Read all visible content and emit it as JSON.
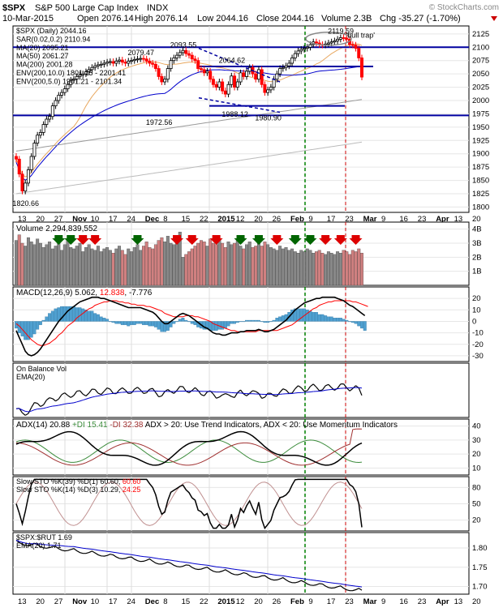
{
  "header": {
    "symbol": "$SPX",
    "name": "S&P 500 Large Cap Index",
    "exchange": "INDX",
    "date": "10-Mar-2015",
    "open": "Open 2076.14",
    "high": "High 2076.14",
    "low": "Low 2044.16",
    "close": "Close 2044.16",
    "volume": "Volume 2.3B",
    "change": "Chg -35.27 (-1.70%)",
    "arrow": "down-arrow-icon",
    "watermark": "© StockCharts.com"
  },
  "colors": {
    "up": "#000000",
    "down": "#ff0000",
    "ma20": "#e8a860",
    "ma50": "#0000cc",
    "ma200": "#000000",
    "blue_line": "#0000a0",
    "green_vline": "#008000",
    "red_vline": "#cc0000",
    "vol_up": "#888888",
    "vol_down": "#d08080",
    "macd_hist": "#4fa0d0",
    "adx": "#000000",
    "plus_di": "#3c8c3c",
    "minus_di": "#a03030"
  },
  "chart_data": [
    {
      "panel": "price",
      "type": "candlestick",
      "title": "$SPX (Daily) 2044.16",
      "legend": [
        {
          "text": "$SPX (Daily) 2044.16",
          "color": "#000000"
        },
        {
          "text": "SAR(0.02,0.2) 2110.94",
          "color": "#444444"
        },
        {
          "text": "MA(20) 2095.21",
          "color": "#e8a860"
        },
        {
          "text": "MA(50) 2061.27",
          "color": "#0000cc"
        },
        {
          "text": "MA(200) 2001.28",
          "color": "#000000"
        },
        {
          "text": "ENV(200,10.0) 1801.15 - 2201.41",
          "color": "#000000"
        },
        {
          "text": "ENV(200,5.0) 1901.21 - 2101.34",
          "color": "#666666"
        }
      ],
      "ylim": [
        1790,
        2140
      ],
      "yticks": [
        2125,
        2100,
        2075,
        2050,
        2025,
        2000,
        1975,
        1950,
        1925,
        1900,
        1875,
        1850,
        1825,
        1800
      ],
      "close": [
        1890,
        1862,
        1830,
        1845,
        1870,
        1895,
        1920,
        1935,
        1940,
        1955,
        1965,
        1970,
        1990,
        2000,
        2010,
        2015,
        2022,
        2030,
        2038,
        2040,
        2045,
        2048,
        2050,
        2054,
        2058,
        2062,
        2065,
        2067,
        2068,
        2070,
        2072,
        2073,
        2070,
        2074,
        2076,
        2072,
        2070,
        2074,
        2075,
        2077,
        2078,
        2079,
        2078,
        2074,
        2070,
        2068,
        2060,
        2045,
        2035,
        2040,
        2060,
        2075,
        2080,
        2085,
        2090,
        2094,
        2088,
        2085,
        2078,
        2075,
        2060,
        2058,
        2052,
        2055,
        2040,
        2030,
        2025,
        2035,
        2018,
        2012,
        2030,
        2046,
        2025,
        2035,
        2052,
        2045,
        2055,
        2062,
        2050,
        2040,
        2058,
        2030,
        2015,
        2020,
        2025,
        2040,
        2050,
        2060,
        2062,
        2065,
        2070,
        2080,
        2088,
        2093,
        2096,
        2098,
        2100,
        2105,
        2110,
        2108,
        2105,
        2104,
        2106,
        2108,
        2110,
        2112,
        2115,
        2118,
        2117,
        2115,
        2105,
        2104,
        2098,
        2080,
        2044
      ],
      "annotations": [
        {
          "text": "1820.66",
          "value": 1820.66,
          "bar": 2
        },
        {
          "text": "2079.47",
          "value": 2079.47,
          "bar": 40
        },
        {
          "text": "2093.55",
          "value": 2093.55,
          "bar": 54
        },
        {
          "text": "1972.56",
          "value": 1972.56,
          "bar": 46
        },
        {
          "text": "2064.62",
          "value": 2064.62,
          "bar": 70
        },
        {
          "text": "1988.12",
          "value": 1988.12,
          "bar": 71
        },
        {
          "text": "1980.90",
          "value": 1980.9,
          "bar": 82
        },
        {
          "text": "2119.59",
          "value": 2119.59,
          "bar": 106
        },
        {
          "text": "'bull trap'",
          "value": 2112,
          "bar": 112
        }
      ],
      "horizontal_lines": [
        2100,
        2064,
        1990,
        1972
      ],
      "x_labels": [
        "13",
        "20",
        "27",
        "Nov",
        "10",
        "17",
        "24",
        "Dec",
        "8",
        "15",
        "22",
        "2015",
        "12",
        "20",
        "26",
        "Feb",
        "9",
        "17",
        "23",
        "Mar",
        "9",
        "16",
        "23",
        "Apr",
        "13",
        "20"
      ]
    },
    {
      "panel": "volume",
      "type": "bar",
      "title": "Volume 2,294,839,552",
      "yticks_labels": [
        "4B",
        "3B",
        "2B",
        "1B"
      ],
      "ylim": [
        0,
        4.5
      ],
      "values": [
        3.2,
        3.6,
        3.0,
        2.8,
        3.4,
        3.1,
        2.9,
        3.3,
        3.0,
        2.7,
        2.9,
        3.1,
        2.6,
        2.8,
        3.0,
        2.5,
        2.9,
        3.2,
        2.7,
        2.6,
        2.8,
        3.0,
        2.4,
        2.7,
        2.9,
        2.6,
        2.5,
        2.8,
        2.4,
        2.6,
        2.7,
        2.5,
        2.3,
        2.6,
        2.8,
        2.5,
        2.2,
        2.6,
        2.4,
        2.7,
        2.9,
        2.5,
        2.8,
        3.1,
        2.7,
        2.6,
        2.9,
        3.2,
        3.4,
        3.1,
        3.5,
        3.0,
        2.9,
        3.2,
        3.8,
        2.0,
        2.2,
        2.4,
        2.6,
        2.8,
        3.0,
        3.2,
        3.1,
        2.8,
        3.3,
        3.0,
        2.9,
        3.2,
        3.0,
        2.7,
        3.1,
        2.9,
        3.0,
        3.2,
        2.8,
        2.6,
        2.9,
        3.1,
        2.7,
        2.8,
        3.0,
        2.8,
        3.1,
        2.9,
        2.7,
        2.6,
        2.5,
        2.8,
        2.6,
        2.7,
        2.5,
        2.6,
        2.4,
        2.3,
        2.5,
        2.4,
        2.6,
        2.5,
        2.3,
        2.4,
        2.5,
        2.3,
        2.2,
        2.4,
        2.3,
        2.2,
        2.4,
        2.3,
        2.5,
        2.4,
        2.2,
        2.5,
        2.4,
        2.6,
        2.3
      ]
    },
    {
      "panel": "macd",
      "type": "line",
      "title": "MACD(12,26,9) 5.062, 12.838, -7.776",
      "legend_parts": [
        {
          "text": "MACD(12,26,9) 5.062, ",
          "color": "#000000"
        },
        {
          "text": "12.838",
          "color": "#ff0000"
        },
        {
          "text": ", -7.776",
          "color": "#000000"
        }
      ],
      "ylim": [
        -35,
        30
      ],
      "yticks": [
        20,
        10,
        0,
        -10,
        -20,
        -30
      ],
      "macd": [
        -8,
        -14,
        -20,
        -26,
        -29,
        -30,
        -29,
        -27,
        -24,
        -20,
        -16,
        -12,
        -8,
        -4,
        0,
        3,
        6,
        9,
        11,
        13,
        15,
        17,
        18,
        19,
        20,
        21,
        21,
        21,
        20,
        20,
        19,
        18,
        17,
        16,
        15,
        14,
        13,
        12,
        12,
        12,
        12,
        12,
        11,
        10,
        9,
        8,
        6,
        3,
        0,
        -2,
        -2,
        0,
        2,
        4,
        6,
        7,
        6,
        5,
        3,
        1,
        -1,
        -3,
        -5,
        -6,
        -8,
        -10,
        -11,
        -11,
        -12,
        -12,
        -11,
        -10,
        -10,
        -10,
        -9,
        -9,
        -8,
        -8,
        -8,
        -8,
        -7,
        -8,
        -9,
        -9,
        -8,
        -7,
        -5,
        -3,
        -1,
        1,
        4,
        7,
        10,
        12,
        14,
        16,
        17,
        18,
        19,
        20,
        20,
        21,
        21,
        21,
        21,
        21,
        20,
        19,
        18,
        16,
        14,
        13,
        11,
        9,
        7,
        5
      ],
      "signal": [
        -2,
        -4,
        -7,
        -10,
        -13,
        -16,
        -18,
        -20,
        -21,
        -21,
        -20,
        -19,
        -17,
        -15,
        -12,
        -10,
        -7,
        -4,
        -2,
        0,
        3,
        5,
        7,
        9,
        11,
        12,
        14,
        15,
        16,
        17,
        17,
        18,
        18,
        18,
        17,
        17,
        16,
        16,
        15,
        15,
        14,
        14,
        14,
        13,
        13,
        12,
        11,
        10,
        9,
        7,
        6,
        5,
        4,
        4,
        4,
        4,
        5,
        5,
        5,
        4,
        4,
        3,
        2,
        1,
        0,
        -2,
        -3,
        -4,
        -5,
        -6,
        -7,
        -8,
        -8,
        -9,
        -9,
        -9,
        -9,
        -9,
        -9,
        -9,
        -8,
        -8,
        -8,
        -8,
        -8,
        -8,
        -8,
        -7,
        -6,
        -5,
        -4,
        -3,
        -1,
        1,
        3,
        5,
        7,
        9,
        11,
        12,
        14,
        15,
        16,
        17,
        17,
        18,
        18,
        18,
        18,
        18,
        18,
        17,
        17,
        16,
        15,
        14,
        13
      ],
      "hist": [
        -6,
        -10,
        -13,
        -16,
        -16,
        -14,
        -11,
        -7,
        -3,
        1,
        4,
        7,
        9,
        11,
        12,
        13,
        13,
        13,
        13,
        13,
        12,
        12,
        11,
        10,
        9,
        9,
        7,
        6,
        4,
        3,
        2,
        0,
        -1,
        -2,
        -2,
        -3,
        -3,
        -4,
        -3,
        -3,
        -2,
        -2,
        -3,
        -3,
        -4,
        -4,
        -5,
        -7,
        -9,
        -9,
        -8,
        -5,
        -2,
        0,
        2,
        3,
        1,
        0,
        -2,
        -3,
        -5,
        -6,
        -7,
        -7,
        -8,
        -8,
        -8,
        -7,
        -7,
        -6,
        -4,
        -2,
        -2,
        -1,
        0,
        0,
        1,
        1,
        1,
        1,
        1,
        0,
        -1,
        -1,
        0,
        1,
        3,
        4,
        5,
        6,
        8,
        10,
        11,
        11,
        11,
        11,
        10,
        9,
        8,
        8,
        6,
        6,
        5,
        4,
        4,
        3,
        3,
        3,
        2,
        1,
        0,
        -1,
        -2,
        -4,
        -6,
        -8
      ]
    },
    {
      "panel": "obv",
      "type": "line",
      "title": "On Balance Vol",
      "legend": [
        {
          "text": "On Balance Vol",
          "color": "#000000"
        },
        {
          "text": "EMA(20)",
          "color": "#0000cc"
        }
      ]
    },
    {
      "panel": "adx",
      "type": "line",
      "title": "ADX(14) 20.88 +DI 15.41 -DI 32.38 ADX > 20: Use Trend Indicators, ADX < 20: Use Momentum Indicators",
      "legend_parts": [
        {
          "text": "ADX(14) 20.88 ",
          "color": "#000000"
        },
        {
          "text": "+DI 15.41 ",
          "color": "#3c8c3c"
        },
        {
          "text": "-DI 32.38 ",
          "color": "#a03030"
        },
        {
          "text": "ADX > 20: Use Trend Indicators, ADX < 20: Use Momentum Indicators",
          "color": "#000000"
        }
      ],
      "ylim": [
        5,
        45
      ],
      "yticks": [
        40,
        30,
        20,
        10
      ]
    },
    {
      "panel": "stochastics",
      "type": "line",
      "legend": [
        {
          "text": "Slow STO %K(39) %D(1) 60.60, ",
          "color": "#000000",
          "extra": "60.60",
          "extra_color": "#ff0000"
        },
        {
          "text": "Slow STO %K(14) %D(3) 10.29, ",
          "color": "#000000",
          "extra": "24.25",
          "extra_color": "#ff0000"
        }
      ],
      "ylim": [
        0,
        100
      ],
      "yticks": [
        80,
        50,
        20
      ]
    },
    {
      "panel": "ratio",
      "type": "line",
      "legend": [
        {
          "text": "$SPX:$RUT 1.69",
          "color": "#000000"
        },
        {
          "text": "EMA(20) 1.71",
          "color": "#0000cc"
        }
      ],
      "ylim": [
        1.68,
        1.84
      ],
      "yticks": [
        "1.80",
        "1.75",
        "1.70"
      ]
    }
  ]
}
